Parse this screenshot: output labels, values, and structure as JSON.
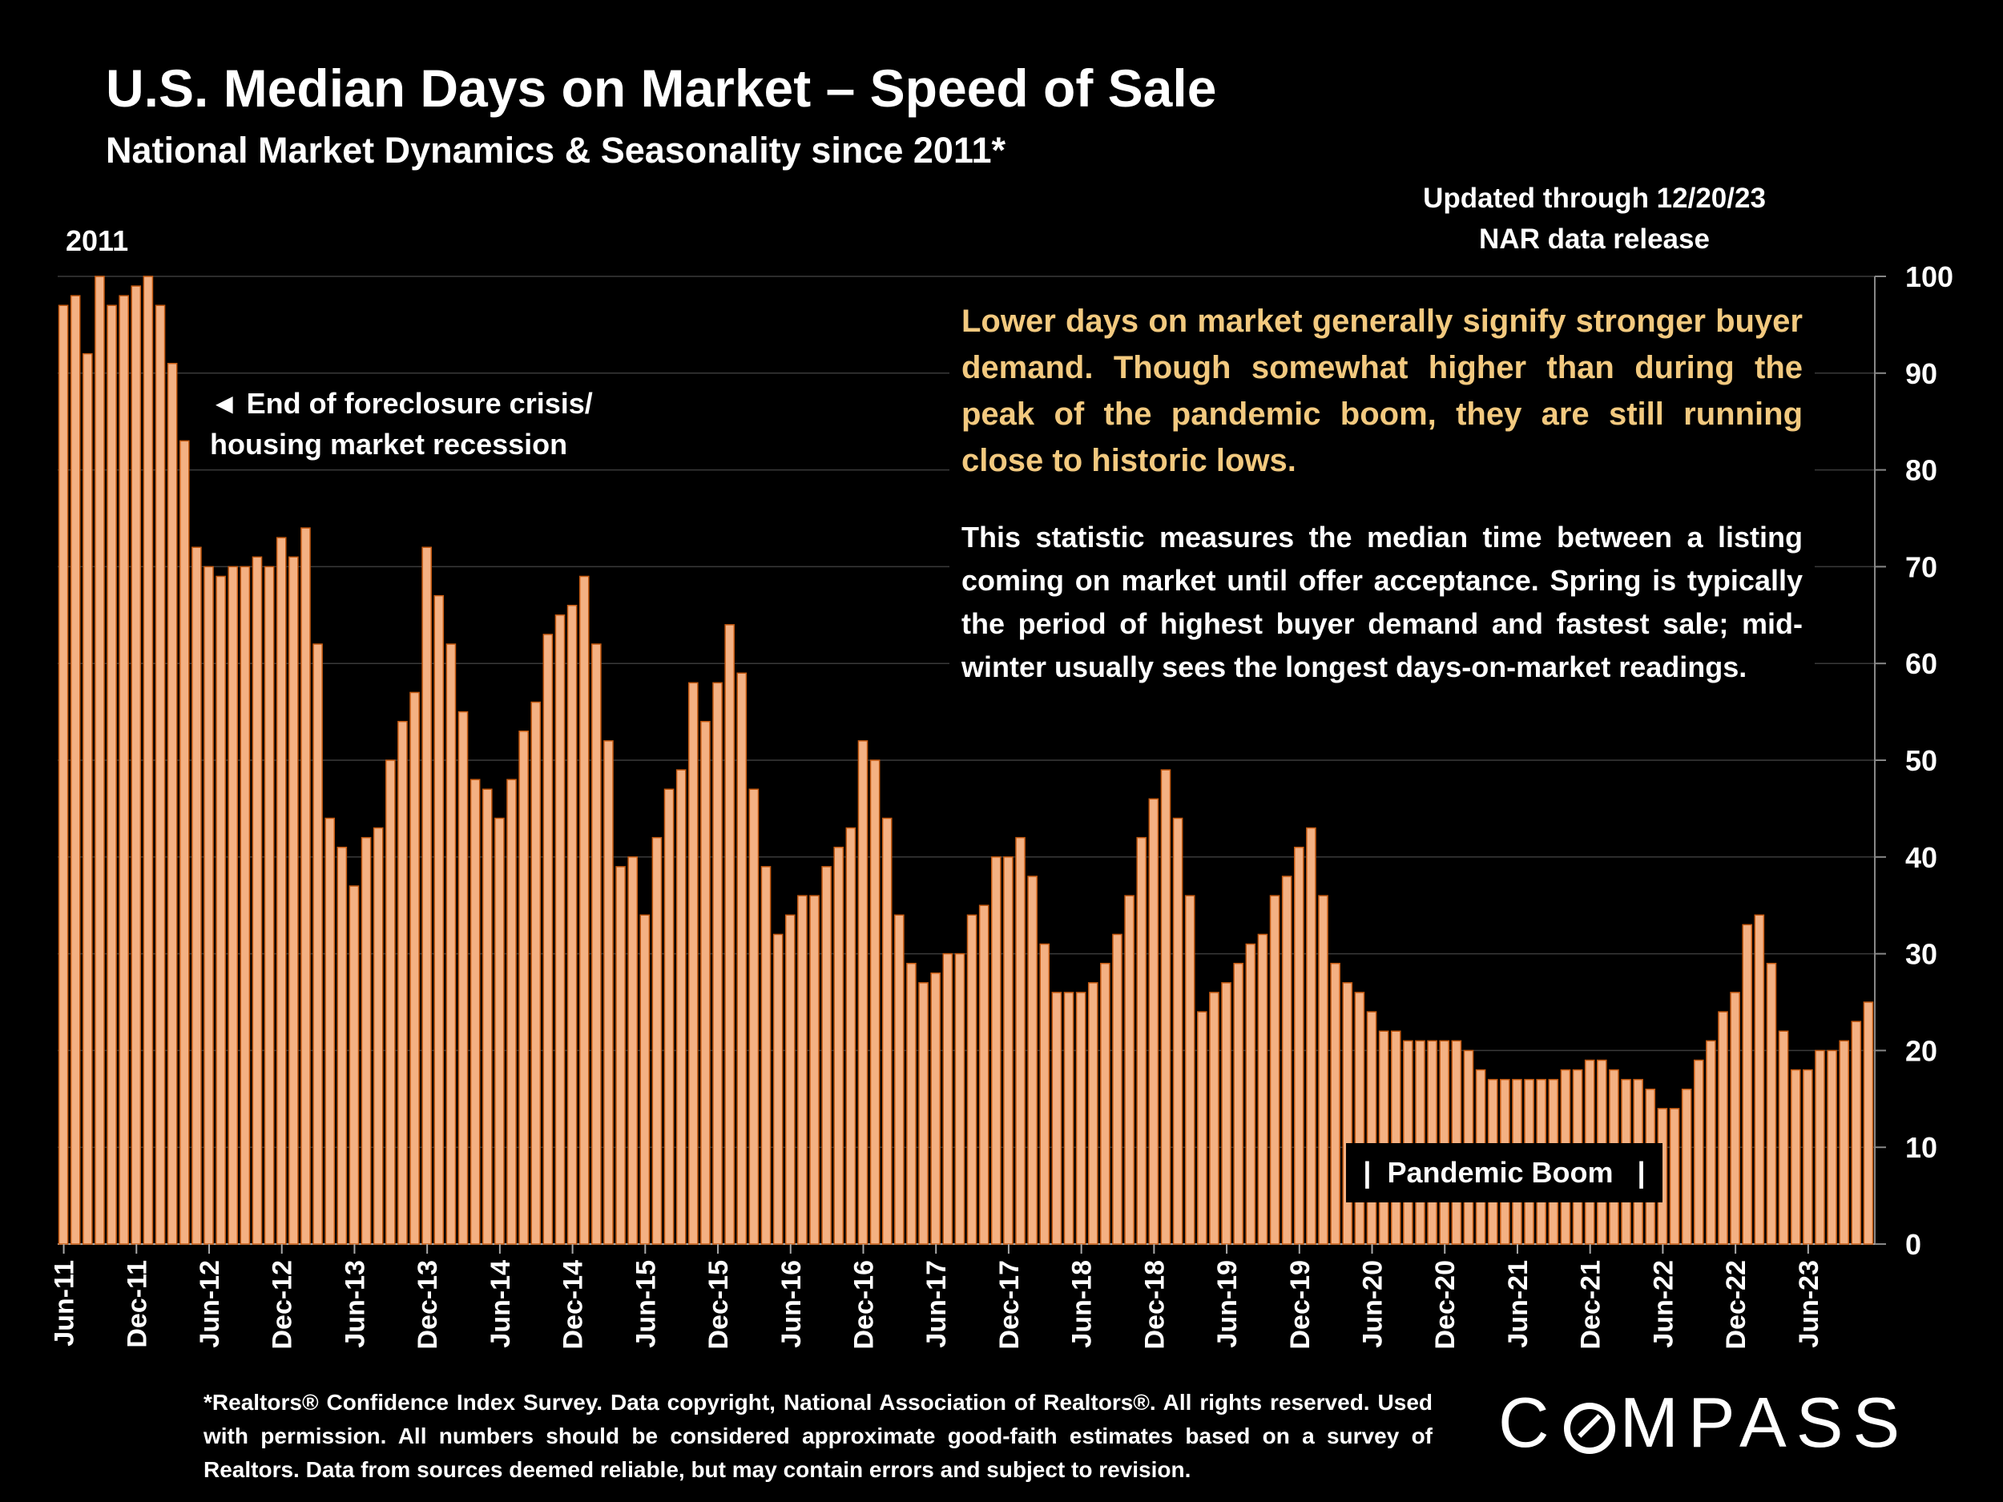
{
  "header": {
    "title": "U.S. Median Days on Market – Speed of Sale",
    "subtitle": "National Market Dynamics & Seasonality since 2011*",
    "updated_line1": "Updated through 12/20/23",
    "updated_line2": "NAR data release",
    "year_label": "2011"
  },
  "annotations": {
    "crisis_line1": "◄ End of foreclosure crisis/",
    "crisis_line2": "housing market recession",
    "highlight": " Lower days on market generally signify stronger buyer demand. Though somewhat higher than during the peak of the pandemic boom, they are still running close to historic lows.",
    "description": "This statistic measures the median time between a listing coming on market until offer acceptance. Spring is typically the period of highest buyer demand and fastest sale; mid-winter usually sees the longest days-on-market readings.",
    "pandemic": "|  Pandemic Boom   |"
  },
  "footer": {
    "footnote": "*Realtors® Confidence Index Survey. Data copyright, National Association of Realtors®. All rights reserved. Used with permission. All numbers should be considered approximate good-faith estimates based on a survey of Realtors. Data from sources deemed reliable, but may contain errors and subject to revision.",
    "logo": "COMPASS"
  },
  "colors": {
    "bar": "#F4B183",
    "bar_edge": "#C55A11",
    "highlight_text": "#F2C97F",
    "grid": "#3a3a3a",
    "background": "#000000"
  },
  "chart_data": {
    "type": "bar",
    "x_start": "Jun-11",
    "ylabel": "",
    "xlabel": "",
    "ylim": [
      0,
      100
    ],
    "y_ticks": [
      0,
      10,
      20,
      30,
      40,
      50,
      60,
      70,
      80,
      90,
      100
    ],
    "y_axis_side": "right",
    "grid": true,
    "x_tick_labels": [
      "Jun-11",
      "Dec-11",
      "Jun-12",
      "Dec-12",
      "Jun-13",
      "Dec-13",
      "Jun-14",
      "Dec-14",
      "Jun-15",
      "Dec-15",
      "Jun-16",
      "Dec-16",
      "Jun-17",
      "Dec-17",
      "Jun-18",
      "Dec-18",
      "Jun-19",
      "Dec-19",
      "Jun-20",
      "Dec-20",
      "Jun-21",
      "Dec-21",
      "Jun-22",
      "Dec-22",
      "Jun-23"
    ],
    "series": [
      {
        "values": [
          97,
          98,
          92,
          100,
          97,
          98,
          99,
          100,
          97,
          91,
          83,
          72,
          70,
          69,
          70,
          70,
          71,
          70,
          73,
          71,
          74,
          62,
          44,
          41,
          37,
          42,
          43,
          50,
          54,
          57,
          72,
          67,
          62,
          55,
          48,
          47,
          44,
          48,
          53,
          56,
          63,
          65,
          66,
          69,
          62,
          52,
          39,
          40,
          34,
          42,
          47,
          49,
          58,
          54,
          58,
          64,
          59,
          47,
          39,
          32,
          34,
          36,
          36,
          39,
          41,
          43,
          52,
          50,
          44,
          34,
          29,
          27,
          28,
          30,
          30,
          34,
          35,
          40,
          40,
          42,
          38,
          31,
          26,
          26,
          26,
          27,
          29,
          32,
          36,
          42,
          46,
          49,
          44,
          36,
          24,
          26,
          27,
          29,
          31,
          32,
          36,
          38,
          41,
          43,
          36,
          29,
          27,
          26,
          24,
          22,
          22,
          21,
          21,
          21,
          21,
          21,
          20,
          18,
          17,
          17,
          17,
          17,
          17,
          17,
          18,
          18,
          19,
          19,
          18,
          17,
          17,
          16,
          14,
          14,
          16,
          19,
          21,
          24,
          26,
          33,
          34,
          29,
          22,
          18,
          18,
          20,
          20,
          21,
          23,
          25
        ]
      }
    ]
  }
}
